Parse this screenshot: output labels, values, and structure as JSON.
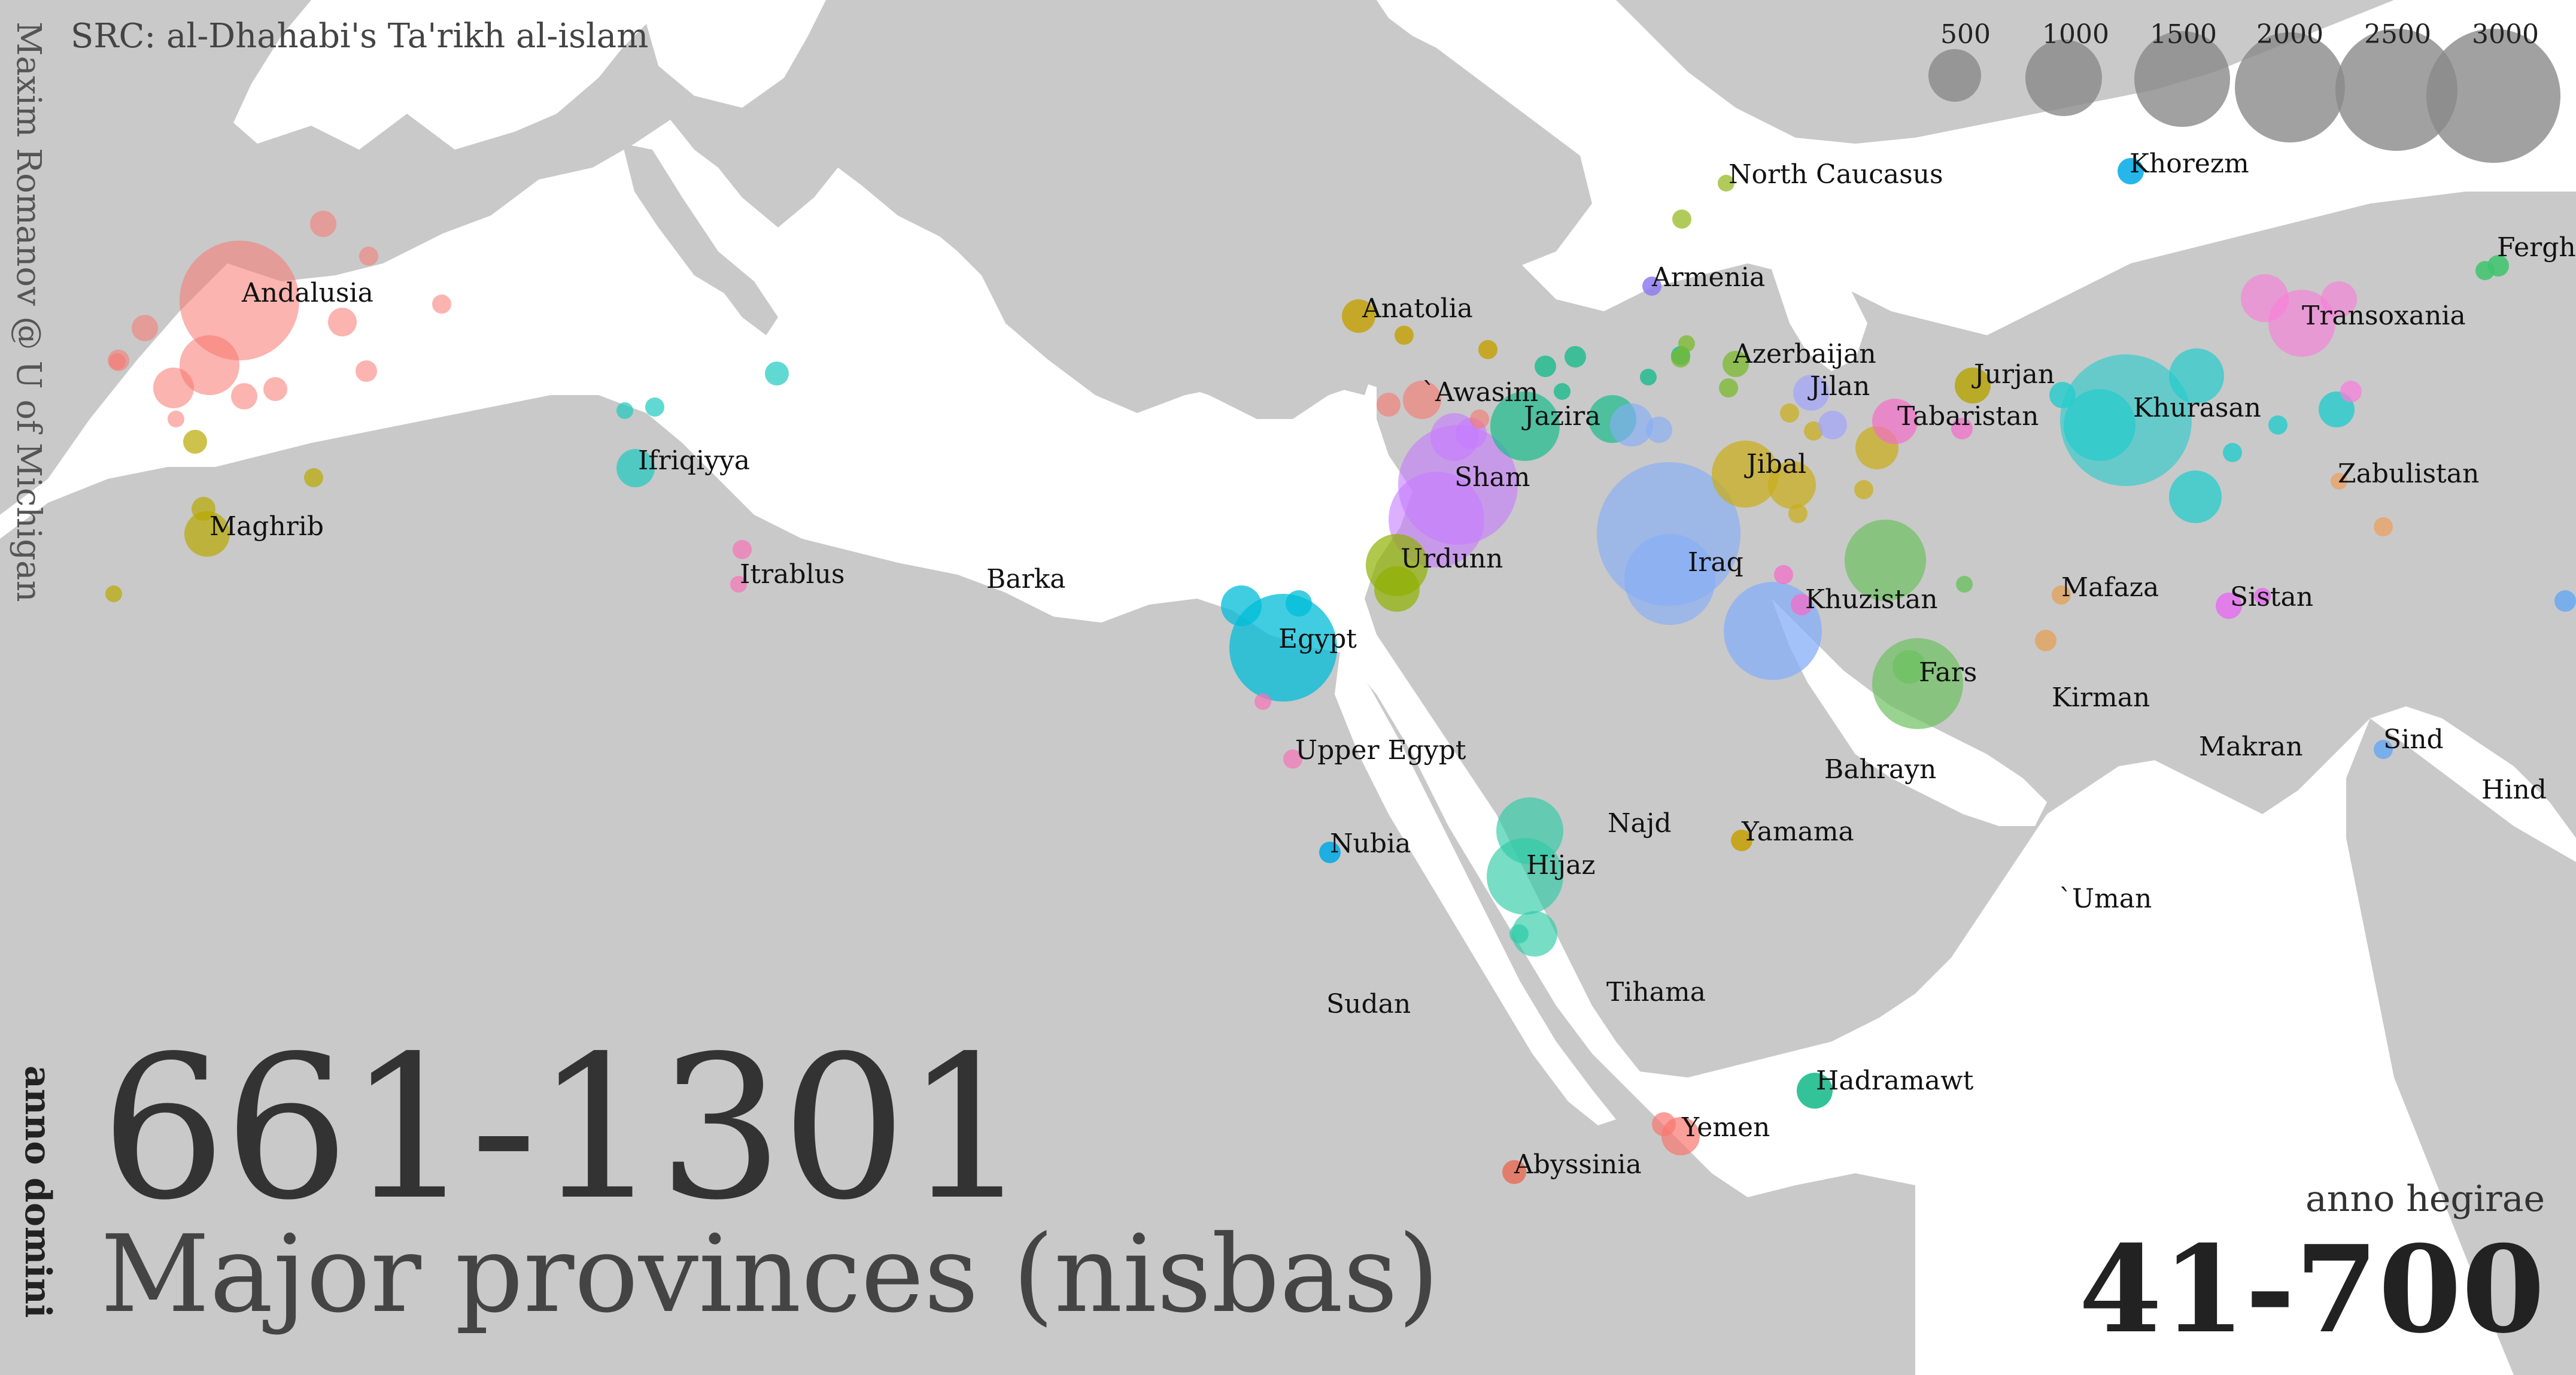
{
  "source": "SRC: al-Dhahabi's Ta'rikh al-islam",
  "author": "Maxim Romanov @ U of Michigan",
  "era_label_ad": "anno domini",
  "years_ad": "661-1301",
  "subtitle": "Major provinces (nisbas)",
  "era_label_ah": "anno hegirae",
  "years_ah": "41-700",
  "legend": {
    "values": [
      "500",
      "1000",
      "1500",
      "2000",
      "2500",
      "3000"
    ]
  },
  "provinces": [
    {
      "name": "North Caucasus",
      "color": "#a3c23d"
    },
    {
      "name": "Khorezm",
      "color": "#00a9e6"
    },
    {
      "name": "Ferghana",
      "color": "#3ec46d"
    },
    {
      "name": "Andalusia",
      "color": "#f8766d"
    },
    {
      "name": "Armenia",
      "color": "#8f7cf0"
    },
    {
      "name": "Anatolia",
      "color": "#c4a000"
    },
    {
      "name": "Transoxania",
      "color": "#f77fd9"
    },
    {
      "name": "Azerbaijan",
      "color": "#7ab82c"
    },
    {
      "name": "`Awasim",
      "color": "#f8766d"
    },
    {
      "name": "Jilan",
      "color": "#a3a6f7"
    },
    {
      "name": "Jurjan",
      "color": "#b5a300"
    },
    {
      "name": "Jazira",
      "color": "#1abc8c"
    },
    {
      "name": "Tabaristan",
      "color": "#f36dc8"
    },
    {
      "name": "Khurasan",
      "color": "#24cccc"
    },
    {
      "name": "Ifriqiyya",
      "color": "#1ec9c0"
    },
    {
      "name": "Sham",
      "color": "#c77cff"
    },
    {
      "name": "Jibal",
      "color": "#c9ad1f"
    },
    {
      "name": "Zabulistan",
      "color": "#e8a56f"
    },
    {
      "name": "Maghrib",
      "color": "#b8a800"
    },
    {
      "name": "Urdunn",
      "color": "#8fb000"
    },
    {
      "name": "Iraq",
      "color": "#86aef8"
    },
    {
      "name": "Itrablus",
      "color": "#f573b7"
    },
    {
      "name": "Barka",
      "color": "#999999"
    },
    {
      "name": "Mafaza",
      "color": "#e0a462"
    },
    {
      "name": "Khuzistan",
      "color": "#86aef8"
    },
    {
      "name": "Sistan",
      "color": "#e76bf3"
    },
    {
      "name": "Egypt",
      "color": "#00bcd8"
    },
    {
      "name": "Fars",
      "color": "#6cc160"
    },
    {
      "name": "Kirman",
      "color": "#999999"
    },
    {
      "name": "Upper Egypt",
      "color": "#f573b7"
    },
    {
      "name": "Makran",
      "color": "#999999"
    },
    {
      "name": "Sind",
      "color": "#6aa9f0"
    },
    {
      "name": "Bahrayn",
      "color": "#999999"
    },
    {
      "name": "Hind",
      "color": "#999999"
    },
    {
      "name": "Najd",
      "color": "#999999"
    },
    {
      "name": "Yamama",
      "color": "#c4a000"
    },
    {
      "name": "Nubia",
      "color": "#00a9e6"
    },
    {
      "name": "Hijaz",
      "color": "#2ecba6"
    },
    {
      "name": "`Uman",
      "color": "#999999"
    },
    {
      "name": "Sudan",
      "color": "#999999"
    },
    {
      "name": "Tihama",
      "color": "#999999"
    },
    {
      "name": "Hadramawt",
      "color": "#10b886"
    },
    {
      "name": "Yemen",
      "color": "#f8766d"
    },
    {
      "name": "Abyssinia",
      "color": "#e8705a"
    }
  ]
}
